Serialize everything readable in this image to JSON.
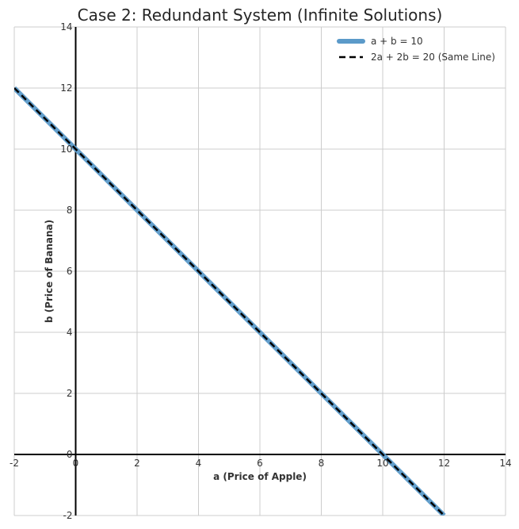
{
  "chart_data": {
    "type": "line",
    "title": "Case 2: Redundant System (Infinite Solutions)",
    "xlabel": "a (Price of Apple)",
    "ylabel": "b (Price of Banana)",
    "xlim": [
      -2,
      14
    ],
    "ylim": [
      -2,
      14
    ],
    "xticks": [
      -2,
      0,
      2,
      4,
      6,
      8,
      10,
      12,
      14
    ],
    "yticks": [
      -2,
      0,
      2,
      4,
      6,
      8,
      10,
      12,
      14
    ],
    "grid": true,
    "legend_position": "top-right",
    "series": [
      {
        "name": "a + b = 10",
        "color": "#5b9ac9",
        "style": "solid-thick",
        "x": [
          -2,
          12
        ],
        "y": [
          12,
          -2
        ]
      },
      {
        "name": "2a + 2b = 20 (Same Line)",
        "color": "#000000",
        "style": "dashed",
        "x": [
          -2,
          12
        ],
        "y": [
          12,
          -2
        ]
      }
    ]
  }
}
